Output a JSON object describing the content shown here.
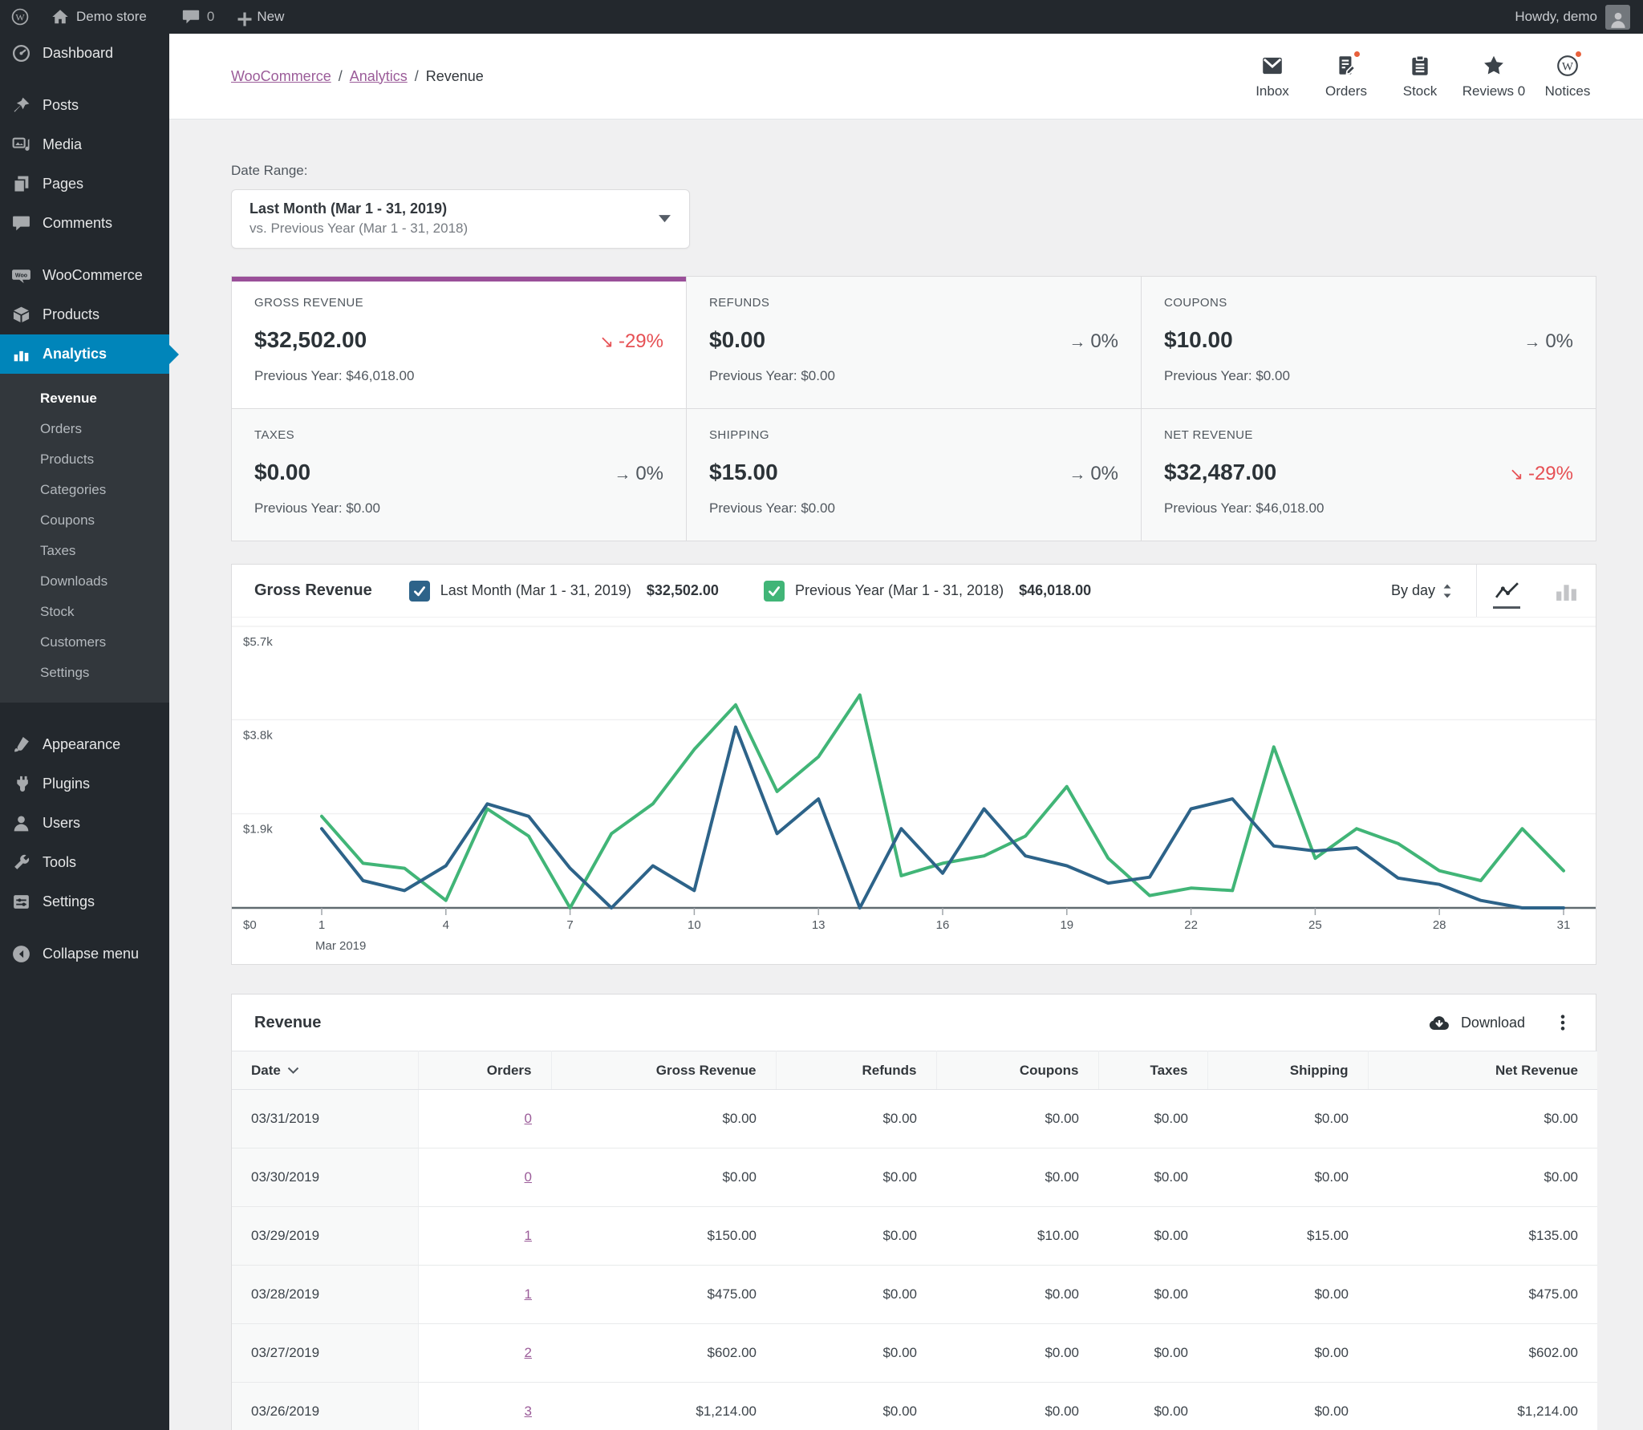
{
  "colors": {
    "accent_purple": "#9a4f99",
    "link_purple": "#9b5c99",
    "active_menu_blue": "#0085ba",
    "negative_red": "#e65054",
    "series_blue": "#2d6389",
    "series_green": "#41b577",
    "badge_orange": "#e8613c"
  },
  "admin_bar": {
    "site_name": "Demo store",
    "comments_count": "0",
    "new_label": "New",
    "howdy": "Howdy, demo"
  },
  "sidebar": {
    "top_items": [
      {
        "label": "Dashboard",
        "icon": "dashboard-icon",
        "gap": false,
        "active": false
      },
      {
        "label": "Posts",
        "icon": "posts-icon",
        "gap": true,
        "active": false
      },
      {
        "label": "Media",
        "icon": "media-icon",
        "gap": false,
        "active": false
      },
      {
        "label": "Pages",
        "icon": "pages-icon",
        "gap": false,
        "active": false
      },
      {
        "label": "Comments",
        "icon": "comments-icon",
        "gap": false,
        "active": false
      },
      {
        "label": "WooCommerce",
        "icon": "woocommerce-icon",
        "gap": true,
        "active": false
      },
      {
        "label": "Products",
        "icon": "products-icon",
        "gap": false,
        "active": false
      },
      {
        "label": "Analytics",
        "icon": "analytics-icon",
        "gap": false,
        "active": true
      }
    ],
    "analytics_submenu": {
      "active": "Revenue",
      "items": [
        "Revenue",
        "Orders",
        "Products",
        "Categories",
        "Coupons",
        "Taxes",
        "Downloads",
        "Stock",
        "Customers",
        "Settings"
      ]
    },
    "bottom_items": [
      {
        "label": "Appearance",
        "icon": "appearance-icon"
      },
      {
        "label": "Plugins",
        "icon": "plugins-icon"
      },
      {
        "label": "Users",
        "icon": "users-icon"
      },
      {
        "label": "Tools",
        "icon": "tools-icon"
      },
      {
        "label": "Settings",
        "icon": "settings-icon"
      }
    ],
    "collapse_label": "Collapse menu"
  },
  "header": {
    "breadcrumb": [
      "WooCommerce",
      "Analytics",
      "Revenue"
    ],
    "activity": [
      {
        "label": "Inbox",
        "icon": "inbox-icon",
        "badge": false
      },
      {
        "label": "Orders",
        "icon": "orders-icon",
        "badge": true
      },
      {
        "label": "Stock",
        "icon": "stock-icon",
        "badge": false
      },
      {
        "label": "Reviews 0",
        "icon": "star-icon",
        "badge": false
      },
      {
        "label": "Notices",
        "icon": "notices-icon",
        "badge": true
      }
    ]
  },
  "filters": {
    "date_range_label": "Date Range:",
    "range_primary": "Last Month (Mar 1 - 31, 2019)",
    "range_secondary": "vs. Previous Year (Mar 1 - 31, 2018)"
  },
  "summary_cards": [
    {
      "label": "GROSS REVENUE",
      "value": "$32,502.00",
      "delta": "-29%",
      "trend": "down",
      "prev": "Previous Year: $46,018.00",
      "selected": true
    },
    {
      "label": "REFUNDS",
      "value": "$0.00",
      "delta": "0%",
      "trend": "flat",
      "prev": "Previous Year: $0.00",
      "selected": false
    },
    {
      "label": "COUPONS",
      "value": "$10.00",
      "delta": "0%",
      "trend": "flat",
      "prev": "Previous Year: $0.00",
      "selected": false
    },
    {
      "label": "TAXES",
      "value": "$0.00",
      "delta": "0%",
      "trend": "flat",
      "prev": "Previous Year: $0.00",
      "selected": false
    },
    {
      "label": "SHIPPING",
      "value": "$15.00",
      "delta": "0%",
      "trend": "flat",
      "prev": "Previous Year: $0.00",
      "selected": false
    },
    {
      "label": "NET REVENUE",
      "value": "$32,487.00",
      "delta": "-29%",
      "trend": "down",
      "prev": "Previous Year: $46,018.00",
      "selected": false
    }
  ],
  "chart": {
    "title": "Gross Revenue",
    "interval": "By day",
    "legend": [
      {
        "label": "Last Month (Mar 1 - 31, 2019)",
        "amount": "$32,502.00",
        "color": "#2d6389",
        "checked": true
      },
      {
        "label": "Previous Year (Mar 1 - 31, 2018)",
        "amount": "$46,018.00",
        "color": "#41b577",
        "checked": true
      }
    ]
  },
  "chart_data": {
    "type": "line",
    "title": "Gross Revenue",
    "xlabel": "Mar 2019",
    "ylabel": "",
    "ylim": [
      0,
      5700
    ],
    "x": [
      1,
      2,
      3,
      4,
      5,
      6,
      7,
      8,
      9,
      10,
      11,
      12,
      13,
      14,
      15,
      16,
      17,
      18,
      19,
      20,
      21,
      22,
      23,
      24,
      25,
      26,
      27,
      28,
      29,
      30,
      31
    ],
    "x_ticks": [
      1,
      4,
      7,
      10,
      13,
      16,
      19,
      22,
      25,
      28,
      31
    ],
    "y_ticks": [
      {
        "value": 0,
        "label": "$0"
      },
      {
        "value": 1900,
        "label": "$1.9k"
      },
      {
        "value": 3800,
        "label": "$3.8k"
      },
      {
        "value": 5700,
        "label": "$5.7k"
      }
    ],
    "grid": true,
    "legend_position": "top",
    "series": [
      {
        "name": "Last Month (Mar 1 - 31, 2019)",
        "color": "#2d6389",
        "total": 32502,
        "values": [
          1600,
          550,
          350,
          850,
          2100,
          1850,
          800,
          0,
          850,
          350,
          3650,
          1500,
          2200,
          0,
          1600,
          700,
          2000,
          1050,
          850,
          500,
          620,
          2000,
          2200,
          1250,
          1150,
          1214,
          602,
          475,
          150,
          0,
          0
        ]
      },
      {
        "name": "Previous Year (Mar 1 - 31, 2018)",
        "color": "#41b577",
        "total": 46018,
        "values": [
          1850,
          900,
          800,
          150,
          2000,
          1450,
          0,
          1500,
          2100,
          3200,
          4100,
          2350,
          3050,
          4300,
          650,
          900,
          1050,
          1450,
          2450,
          1000,
          250,
          400,
          350,
          3250,
          1000,
          1600,
          1300,
          750,
          550,
          1600,
          750
        ]
      }
    ]
  },
  "table": {
    "title": "Revenue",
    "download_label": "Download",
    "columns": [
      "Date",
      "Orders",
      "Gross Revenue",
      "Refunds",
      "Coupons",
      "Taxes",
      "Shipping",
      "Net Revenue"
    ],
    "rows": [
      [
        "03/31/2019",
        "0",
        "$0.00",
        "$0.00",
        "$0.00",
        "$0.00",
        "$0.00",
        "$0.00"
      ],
      [
        "03/30/2019",
        "0",
        "$0.00",
        "$0.00",
        "$0.00",
        "$0.00",
        "$0.00",
        "$0.00"
      ],
      [
        "03/29/2019",
        "1",
        "$150.00",
        "$0.00",
        "$10.00",
        "$0.00",
        "$15.00",
        "$135.00"
      ],
      [
        "03/28/2019",
        "1",
        "$475.00",
        "$0.00",
        "$0.00",
        "$0.00",
        "$0.00",
        "$475.00"
      ],
      [
        "03/27/2019",
        "2",
        "$602.00",
        "$0.00",
        "$0.00",
        "$0.00",
        "$0.00",
        "$602.00"
      ],
      [
        "03/26/2019",
        "3",
        "$1,214.00",
        "$0.00",
        "$0.00",
        "$0.00",
        "$0.00",
        "$1,214.00"
      ]
    ]
  }
}
